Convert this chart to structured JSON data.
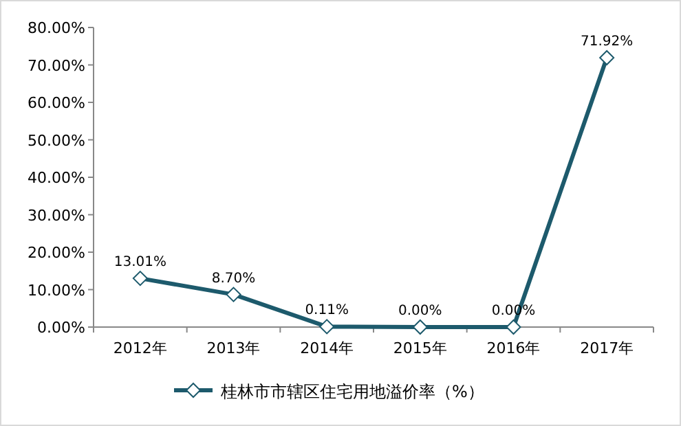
{
  "chart_data": {
    "type": "line",
    "categories": [
      "2012年",
      "2013年",
      "2014年",
      "2015年",
      "2016年",
      "2017年"
    ],
    "series": [
      {
        "name": "桂林市市辖区住宅用地溢价率（%）",
        "color": "#1d5a6c",
        "values": [
          13.01,
          8.7,
          0.11,
          0.0,
          0.0,
          71.92
        ],
        "value_labels": [
          "13.01%",
          "8.70%",
          "0.11%",
          "0.00%",
          "0.00%",
          "71.92%"
        ]
      }
    ],
    "ylim": [
      0,
      80
    ],
    "yticks": [
      {
        "value": 0,
        "label": "0.00%"
      },
      {
        "value": 10,
        "label": "10.00%"
      },
      {
        "value": 20,
        "label": "20.00%"
      },
      {
        "value": 30,
        "label": "30.00%"
      },
      {
        "value": 40,
        "label": "40.00%"
      },
      {
        "value": 50,
        "label": "50.00%"
      },
      {
        "value": 60,
        "label": "60.00%"
      },
      {
        "value": 70,
        "label": "70.00%"
      },
      {
        "value": 80,
        "label": "80.00%"
      }
    ],
    "legend": "bottom",
    "marker": "diamond"
  }
}
